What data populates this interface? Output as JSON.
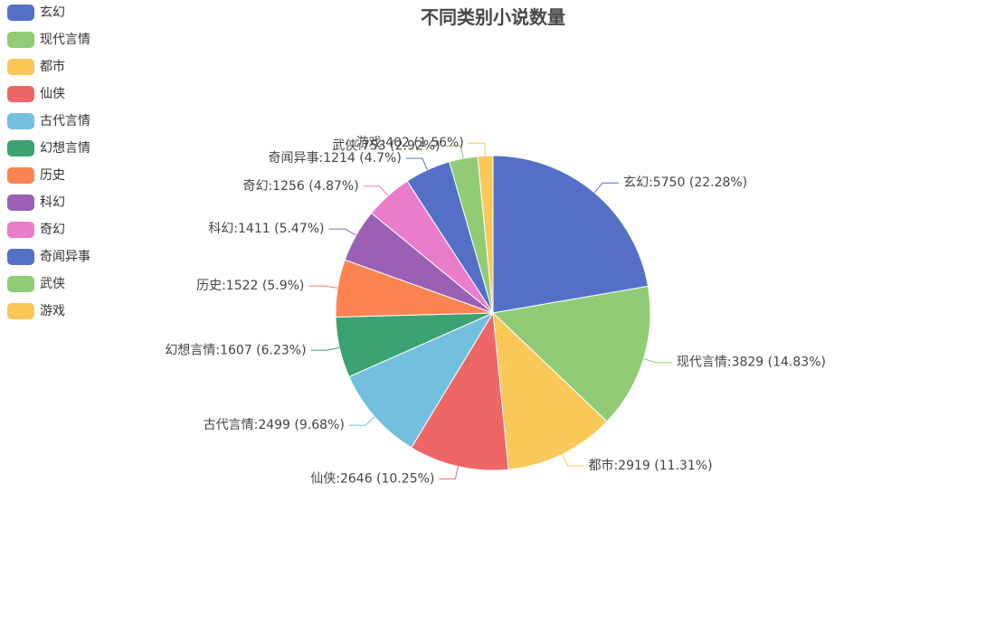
{
  "chart_data": {
    "type": "pie",
    "title": "不同类别小说数量",
    "legend_position": "top-left",
    "slices": [
      {
        "name": "玄幻",
        "value": 5750,
        "percent": "22.28%",
        "color": "#5470c6"
      },
      {
        "name": "现代言情",
        "value": 3829,
        "percent": "14.83%",
        "color": "#91cc75"
      },
      {
        "name": "都市",
        "value": 2919,
        "percent": "11.31%",
        "color": "#fac858"
      },
      {
        "name": "仙侠",
        "value": 2646,
        "percent": "10.25%",
        "color": "#ee6666"
      },
      {
        "name": "古代言情",
        "value": 2499,
        "percent": "9.68%",
        "color": "#73c0de"
      },
      {
        "name": "幻想言情",
        "value": 1607,
        "percent": "6.23%",
        "color": "#3ba272"
      },
      {
        "name": "历史",
        "value": 1522,
        "percent": "5.9%",
        "color": "#fc8452"
      },
      {
        "name": "科幻",
        "value": 1411,
        "percent": "5.47%",
        "color": "#9a60b4"
      },
      {
        "name": "奇幻",
        "value": 1256,
        "percent": "4.87%",
        "color": "#ea7ccc"
      },
      {
        "name": "奇闻异事",
        "value": 1214,
        "percent": "4.7%",
        "color": "#5470c6"
      },
      {
        "name": "武侠",
        "value": 753,
        "percent": "2.92%",
        "color": "#91cc75"
      },
      {
        "name": "游戏",
        "value": 402,
        "percent": "1.56%",
        "color": "#fac858"
      }
    ]
  }
}
